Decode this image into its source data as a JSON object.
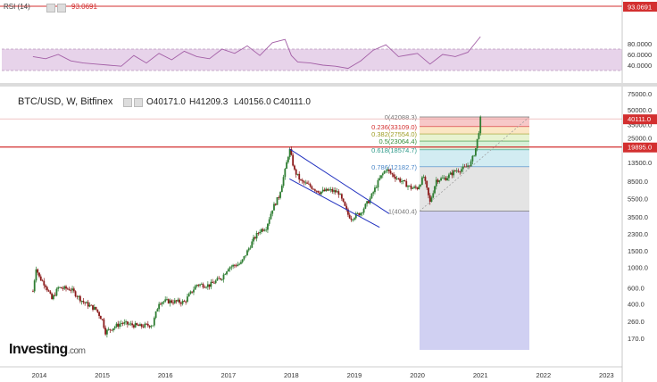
{
  "header": {
    "rsi_label": "RSI (14)",
    "rsi_value": "93.0691",
    "symbol": "BTC/USD, W, Bitfinex",
    "open": "O40171.0",
    "high": "H41209.3",
    "low": "L40156.0",
    "close": "C40111.0"
  },
  "logo": {
    "text": "Investing",
    "suffix": ".com"
  },
  "colors": {
    "up": "#2e7d32",
    "down": "#8b1a1a",
    "rsi_line": "#a35fa6",
    "rsi_band": "#e7d3ea",
    "hline": "#d32f2f",
    "trendline": "#1f2fbf",
    "last_price_bg": "#d32f2f"
  },
  "chart_data": [
    {
      "type": "line",
      "name": "RSI (14)",
      "x_ticks": [
        "2014",
        "2015",
        "2016",
        "2017",
        "2018",
        "2019",
        "2020",
        "2021",
        "2022",
        "2023"
      ],
      "y_ticks": [
        "80.0000",
        "60.0000",
        "40.0000"
      ],
      "overbought": 70,
      "oversold": 30,
      "last_value": "93.0691",
      "x": [
        2013.9,
        2014.1,
        2014.3,
        2014.5,
        2014.7,
        2014.9,
        2015.1,
        2015.3,
        2015.5,
        2015.7,
        2015.9,
        2016.1,
        2016.3,
        2016.5,
        2016.7,
        2016.9,
        2017.1,
        2017.3,
        2017.5,
        2017.7,
        2017.9,
        2018.0,
        2018.1,
        2018.3,
        2018.5,
        2018.7,
        2018.9,
        2019.1,
        2019.3,
        2019.5,
        2019.7,
        2019.9,
        2020.0,
        2020.2,
        2020.4,
        2020.6,
        2020.8,
        2020.95,
        2021.0
      ],
      "y": [
        56,
        52,
        60,
        48,
        44,
        42,
        40,
        38,
        58,
        44,
        62,
        50,
        66,
        56,
        52,
        70,
        62,
        76,
        58,
        82,
        88,
        58,
        46,
        44,
        40,
        38,
        34,
        48,
        68,
        78,
        56,
        60,
        62,
        42,
        60,
        56,
        64,
        86,
        93
      ]
    },
    {
      "type": "line",
      "name": "BTC/USD",
      "scale": "log",
      "y_ticks": [
        "75000.0",
        "50000.0",
        "35000.0",
        "25000.0",
        "13500.0",
        "8500.0",
        "5500.0",
        "3500.0",
        "2300.0",
        "1500.0",
        "1000.0",
        "600.0",
        "400.0",
        "260.0",
        "170.0"
      ],
      "x_ticks": [
        "2014",
        "2015",
        "2016",
        "2017",
        "2018",
        "2019",
        "2020",
        "2021",
        "2022",
        "2023"
      ],
      "x": [
        2013.9,
        2013.95,
        2014.0,
        2014.1,
        2014.2,
        2014.3,
        2014.5,
        2014.7,
        2014.9,
        2015.0,
        2015.05,
        2015.3,
        2015.6,
        2015.8,
        2015.9,
        2016.0,
        2016.3,
        2016.5,
        2016.7,
        2016.9,
        2017.0,
        2017.2,
        2017.4,
        2017.5,
        2017.6,
        2017.7,
        2017.8,
        2017.9,
        2017.97,
        2018.05,
        2018.15,
        2018.3,
        2018.45,
        2018.6,
        2018.75,
        2018.9,
        2018.95,
        2019.1,
        2019.25,
        2019.4,
        2019.5,
        2019.6,
        2019.75,
        2019.9,
        2020.0,
        2020.1,
        2020.2,
        2020.3,
        2020.45,
        2020.6,
        2020.75,
        2020.85,
        2020.92,
        2020.97,
        2021.0
      ],
      "y": [
        550,
        1000,
        780,
        640,
        450,
        600,
        580,
        420,
        350,
        270,
        200,
        250,
        230,
        240,
        420,
        430,
        420,
        650,
        640,
        780,
        1000,
        1100,
        2000,
        2500,
        2700,
        4300,
        5800,
        11000,
        19000,
        11000,
        8500,
        7500,
        6500,
        6800,
        6400,
        3700,
        3400,
        3900,
        5500,
        9000,
        11500,
        10000,
        8500,
        7200,
        7200,
        9500,
        5000,
        8800,
        9200,
        11000,
        11800,
        13500,
        18500,
        28000,
        40111
      ]
    }
  ],
  "fib": {
    "levels": [
      {
        "label": "0(42088.3)",
        "price": 42088.3,
        "color": "#777777",
        "fill": "#f7c8c8"
      },
      {
        "label": "0.236(33109.0)",
        "price": 33109.0,
        "color": "#d32f2f",
        "fill": "#fbe6c4"
      },
      {
        "label": "0.382(27554.0)",
        "price": 27554.0,
        "color": "#9e9d24",
        "fill": "#e8f3d0"
      },
      {
        "label": "0.5(23064.4)",
        "price": 23064.4,
        "color": "#388e3c",
        "fill": "#d8f0d8"
      },
      {
        "label": "0.618(18574.7)",
        "price": 18574.7,
        "color": "#2e9a8a",
        "fill": "#d2ecf2"
      },
      {
        "label": "0.786(12182.7)",
        "price": 12182.7,
        "color": "#4a86c7",
        "fill": "#e4e4e4"
      },
      {
        "label": "1(4040.4)",
        "price": 4040.4,
        "color": "#777777",
        "fill": "#d0d0f2"
      }
    ]
  },
  "price_labels": {
    "last": "40111.0",
    "hline": "19895.0"
  }
}
